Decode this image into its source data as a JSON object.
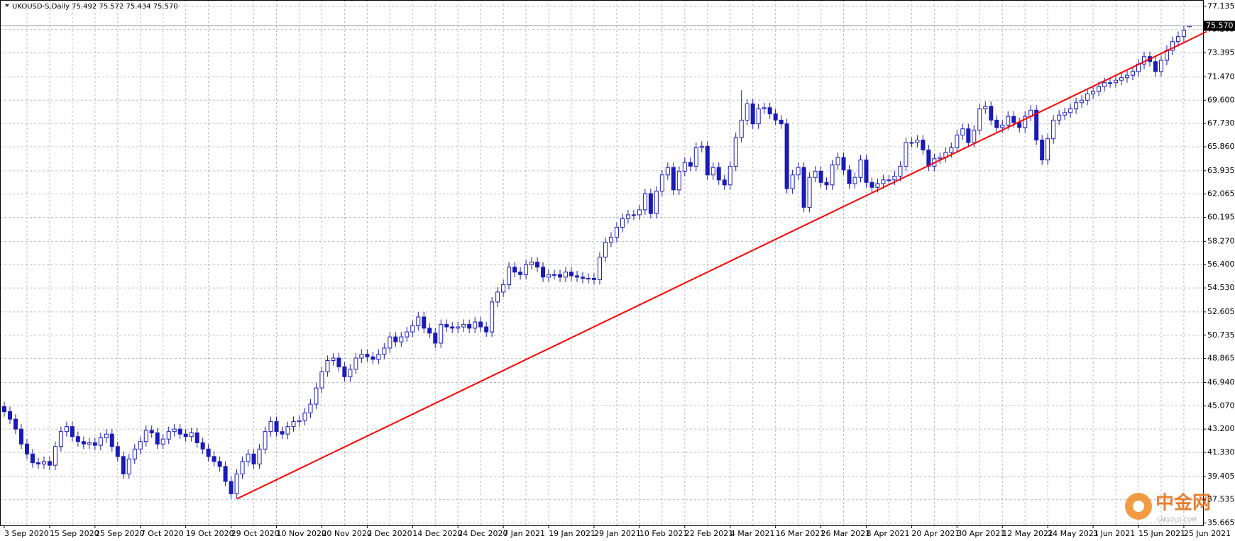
{
  "chart_data": {
    "type": "candlestick",
    "title": "UKOUSD-S,Daily 75.492 75.572 75.434 75.570",
    "last_price_label": "75.570",
    "watermark": "中金网",
    "watermark_sub": "CNGOLD.COM",
    "color": "#1a1ab8",
    "trendline": {
      "color": "#ff0000",
      "start": [
        41,
        37.6
      ],
      "end": [
        212,
        75.1
      ]
    },
    "grid": true,
    "ylim": [
      35.47,
      77.64
    ],
    "yticks": [
      {
        "value": 77.135,
        "label": "77.135"
      },
      {
        "value": 75.265,
        "label": "75.265"
      },
      {
        "value": 73.395,
        "label": "73.395"
      },
      {
        "value": 71.47,
        "label": "71.470"
      },
      {
        "value": 69.6,
        "label": "69.600"
      },
      {
        "value": 67.73,
        "label": "67.730"
      },
      {
        "value": 65.86,
        "label": "65.860"
      },
      {
        "value": 63.935,
        "label": "63.935"
      },
      {
        "value": 62.065,
        "label": "62.065"
      },
      {
        "value": 60.195,
        "label": "60.195"
      },
      {
        "value": 58.27,
        "label": "58.270"
      },
      {
        "value": 56.4,
        "label": "56.400"
      },
      {
        "value": 54.53,
        "label": "54.530"
      },
      {
        "value": 52.605,
        "label": "52.605"
      },
      {
        "value": 50.735,
        "label": "50.735"
      },
      {
        "value": 48.865,
        "label": "48.865"
      },
      {
        "value": 46.94,
        "label": "46.940"
      },
      {
        "value": 45.07,
        "label": "45.070"
      },
      {
        "value": 43.2,
        "label": "43.200"
      },
      {
        "value": 41.33,
        "label": "41.330"
      },
      {
        "value": 39.405,
        "label": "39.405"
      },
      {
        "value": 37.535,
        "label": "37.535"
      },
      {
        "value": 35.665,
        "label": "35.665"
      }
    ],
    "categories": [
      "3 Sep 2020",
      null,
      null,
      null,
      null,
      null,
      null,
      null,
      "15 Sep 2020",
      null,
      null,
      null,
      null,
      null,
      null,
      null,
      "25 Sep 2020",
      null,
      null,
      null,
      null,
      null,
      null,
      null,
      "7 Oct 2020",
      null,
      null,
      null,
      null,
      null,
      null,
      null,
      "19 Oct 2020",
      null,
      null,
      null,
      null,
      null,
      null,
      null,
      "29 Oct 2020",
      null,
      null,
      null,
      null,
      null,
      null,
      null,
      "10 Nov 2020",
      null,
      null,
      null,
      null,
      null,
      null,
      null,
      "20 Nov 2020",
      null,
      null,
      null,
      null,
      null,
      null,
      null,
      "2 Dec 2020",
      null,
      null,
      null,
      null,
      null,
      null,
      null,
      "14 Dec 2020",
      null,
      null,
      null,
      null,
      null,
      null,
      null,
      "24 Dec 2020",
      null,
      null,
      null,
      null,
      null,
      null,
      null,
      "7 Jan 2021",
      null,
      null,
      null,
      null,
      null,
      null,
      null,
      "19 Jan 2021",
      null,
      null,
      null,
      null,
      null,
      null,
      null,
      "29 Jan 2021",
      null,
      null,
      null,
      null,
      null,
      null,
      null,
      "10 Feb 2021",
      null,
      null,
      null,
      null,
      null,
      null,
      null,
      "22 Feb 2021",
      null,
      null,
      null,
      null,
      null,
      null,
      null,
      "4 Mar 2021",
      null,
      null,
      null,
      null,
      null,
      null,
      null,
      "16 Mar 2021",
      null,
      null,
      null,
      null,
      null,
      null,
      null,
      "26 Mar 2021",
      null,
      null,
      null,
      null,
      null,
      null,
      null,
      "8 Apr 2021",
      null,
      null,
      null,
      null,
      null,
      null,
      null,
      "20 Apr 2021",
      null,
      null,
      null,
      null,
      null,
      null,
      null,
      "30 Apr 2021",
      null,
      null,
      null,
      null,
      null,
      null,
      null,
      "12 May 2021",
      null,
      null,
      null,
      null,
      null,
      null,
      null,
      "24 May 2021",
      null,
      null,
      null,
      null,
      null,
      null,
      null,
      "3 Jun 2021",
      null,
      null,
      null,
      null,
      null,
      null,
      null,
      "15 Jun 2021",
      null,
      null,
      null,
      null,
      null,
      null,
      null,
      "25 Jun 2021",
      null
    ],
    "open": [
      45,
      44.6,
      44.0,
      43.2,
      42.0,
      41.2,
      40.5,
      40.4,
      40.6,
      40.3,
      41.8,
      43.0,
      43.4,
      42.6,
      42.2,
      42.0,
      42.1,
      41.9,
      42.5,
      42.8,
      41.8,
      41.0,
      39.6,
      40.8,
      41.6,
      42.2,
      43.1,
      42.9,
      42.0,
      42.4,
      43.0,
      43.2,
      42.8,
      42.6,
      42.9,
      42.1,
      41.6,
      41.0,
      40.6,
      40.2,
      39.0,
      38.0,
      39.6,
      40.6,
      41.2,
      40.4,
      41.6,
      43.0,
      43.8,
      43.0,
      42.8,
      43.4,
      43.8,
      43.9,
      44.5,
      45.2,
      46.5,
      47.8,
      48.7,
      48.9,
      48.2,
      47.4,
      48.0,
      48.9,
      49.2,
      49.0,
      48.8,
      49.2,
      49.7,
      50.6,
      50.2,
      50.6,
      51.0,
      51.5,
      52.2,
      51.3,
      50.9,
      50.1,
      51.6,
      51.4,
      51.3,
      51.4,
      51.6,
      51.3,
      51.8,
      51.4,
      51.0,
      53.4,
      54.2,
      54.8,
      56.2,
      55.8,
      55.6,
      56.4,
      56.6,
      56.2,
      55.4,
      55.6,
      55.6,
      55.4,
      55.8,
      55.5,
      55.4,
      55.3,
      55.3,
      55.2,
      57.0,
      58.2,
      58.6,
      59.4,
      60.1,
      60.4,
      60.4,
      60.8,
      62.1,
      60.5,
      62.3,
      63.6,
      64.2,
      62.4,
      63.9,
      64.6,
      64.3,
      65.8,
      65.9,
      63.6,
      64.2,
      63.2,
      62.8,
      64.3,
      66.6,
      68.0,
      69.3,
      67.7,
      68.9,
      69.0,
      68.5,
      68.0,
      67.7,
      62.5,
      63.6,
      64.2,
      61.0,
      63.4,
      63.9,
      63.0,
      62.8,
      64.4,
      65.0,
      64.0,
      62.9,
      63.4,
      64.8,
      63.0,
      62.6,
      62.9,
      63.2,
      63.2,
      63.5,
      64.3,
      66.2,
      66.2,
      66.4,
      65.6,
      64.3,
      64.9,
      65.0,
      65.4,
      65.8,
      66.8,
      67.3,
      66.2,
      67.2,
      68.9,
      69.1,
      68.0,
      67.4,
      67.6,
      68.3,
      67.8,
      67.4,
      68.3,
      68.8,
      66.4,
      64.8,
      66.5,
      68.0,
      68.4,
      68.6,
      68.9,
      69.4,
      69.6,
      70.1,
      70.3,
      70.7,
      71.0,
      71.0,
      71.2,
      71.4,
      71.6,
      71.9,
      72.5,
      73.1,
      72.7,
      71.9,
      72.8,
      73.6,
      74.3,
      74.7,
      75.492
    ],
    "high": [
      45.4,
      45.0,
      44.4,
      43.6,
      42.4,
      41.6,
      40.9,
      41.0,
      41.0,
      42.2,
      43.4,
      43.8,
      43.8,
      43.0,
      42.6,
      42.5,
      42.5,
      42.9,
      43.2,
      43.2,
      42.2,
      41.4,
      41.2,
      42.0,
      42.6,
      43.5,
      43.5,
      43.3,
      42.8,
      43.4,
      43.6,
      43.6,
      43.2,
      43.3,
      43.3,
      42.5,
      42.0,
      41.4,
      41.0,
      40.6,
      39.4,
      40.0,
      41.0,
      41.6,
      41.6,
      42.0,
      43.4,
      44.2,
      44.2,
      43.4,
      43.8,
      44.2,
      44.3,
      44.9,
      45.6,
      46.9,
      48.2,
      49.1,
      49.3,
      49.3,
      48.6,
      48.4,
      49.3,
      49.6,
      49.6,
      49.4,
      49.6,
      50.1,
      51.0,
      51.0,
      51.0,
      51.4,
      51.9,
      52.6,
      52.6,
      51.7,
      51.3,
      52.0,
      52.0,
      51.8,
      51.8,
      52.0,
      52.0,
      52.2,
      52.2,
      51.8,
      53.8,
      54.6,
      55.2,
      56.6,
      56.6,
      56.2,
      56.8,
      57.0,
      57.0,
      56.6,
      56.0,
      56.0,
      56.0,
      56.2,
      56.2,
      55.9,
      55.8,
      55.7,
      55.7,
      57.4,
      58.6,
      59.0,
      59.8,
      60.5,
      60.8,
      60.8,
      61.2,
      62.5,
      62.5,
      62.7,
      64.0,
      64.6,
      64.6,
      64.3,
      65.0,
      65.0,
      66.2,
      66.3,
      66.3,
      64.6,
      64.6,
      63.6,
      64.7,
      67.0,
      70.4,
      69.7,
      69.7,
      69.3,
      69.4,
      69.4,
      68.9,
      68.4,
      68.1,
      64.0,
      64.6,
      64.6,
      63.8,
      64.3,
      64.3,
      63.4,
      64.8,
      65.4,
      65.4,
      64.4,
      63.8,
      65.2,
      65.2,
      63.4,
      63.3,
      63.6,
      63.6,
      63.9,
      64.7,
      66.6,
      66.6,
      66.8,
      66.8,
      66.0,
      65.3,
      65.4,
      65.8,
      66.2,
      67.2,
      67.7,
      67.7,
      67.6,
      69.3,
      69.5,
      69.5,
      68.4,
      68.0,
      68.7,
      68.7,
      68.2,
      68.7,
      69.2,
      69.2,
      66.8,
      66.9,
      68.4,
      68.8,
      69.0,
      69.3,
      69.8,
      70.0,
      70.5,
      70.7,
      71.1,
      71.4,
      71.4,
      71.6,
      71.8,
      72.0,
      72.3,
      72.9,
      73.5,
      73.5,
      73.1,
      73.2,
      74.0,
      74.7,
      75.1,
      75.6,
      75.572
    ],
    "low": [
      44.2,
      43.6,
      42.8,
      41.6,
      40.8,
      40.1,
      40.0,
      40.0,
      39.9,
      39.9,
      41.4,
      42.6,
      42.2,
      41.8,
      41.6,
      41.6,
      41.5,
      41.5,
      42.1,
      41.4,
      40.6,
      39.2,
      39.2,
      40.4,
      41.2,
      41.8,
      42.5,
      41.6,
      41.6,
      42.0,
      42.6,
      42.4,
      42.2,
      42.2,
      41.7,
      41.2,
      40.6,
      40.2,
      39.8,
      38.6,
      37.6,
      37.6,
      39.2,
      40.2,
      40.0,
      40.0,
      41.2,
      42.6,
      42.6,
      42.4,
      42.4,
      43.0,
      43.4,
      43.5,
      44.1,
      44.8,
      46.1,
      47.4,
      48.3,
      47.8,
      47.0,
      47.0,
      47.6,
      48.5,
      48.6,
      48.4,
      48.4,
      48.8,
      49.3,
      49.8,
      49.8,
      50.2,
      50.6,
      51.1,
      50.9,
      50.5,
      49.7,
      49.7,
      51.0,
      50.9,
      50.9,
      51.0,
      50.9,
      50.9,
      51.0,
      50.6,
      50.6,
      53.0,
      53.8,
      54.4,
      55.4,
      55.2,
      55.2,
      56.0,
      55.8,
      55.0,
      55.0,
      55.2,
      55.0,
      55.0,
      55.1,
      55.0,
      54.9,
      54.9,
      54.8,
      54.8,
      56.6,
      57.8,
      58.2,
      59.0,
      59.7,
      60.0,
      60.0,
      60.4,
      60.1,
      60.1,
      61.9,
      63.2,
      62.0,
      62.0,
      63.5,
      63.9,
      63.9,
      65.4,
      63.2,
      63.2,
      62.8,
      62.4,
      62.4,
      63.9,
      66.2,
      67.6,
      67.3,
      67.3,
      68.5,
      68.1,
      67.6,
      67.3,
      62.1,
      62.1,
      63.2,
      60.6,
      60.6,
      63.0,
      62.6,
      62.4,
      62.4,
      64.0,
      63.6,
      62.5,
      62.5,
      63.0,
      62.6,
      62.2,
      62.2,
      62.5,
      62.8,
      62.8,
      63.1,
      63.9,
      65.8,
      65.8,
      65.2,
      63.9,
      63.9,
      64.5,
      64.6,
      65.0,
      65.4,
      66.4,
      65.8,
      65.8,
      66.8,
      68.5,
      67.6,
      67.0,
      67.0,
      67.2,
      67.4,
      67.0,
      67.0,
      67.9,
      66.0,
      64.4,
      64.4,
      66.1,
      67.6,
      68.0,
      68.2,
      68.5,
      69.0,
      69.2,
      69.7,
      69.9,
      70.3,
      70.6,
      70.6,
      70.8,
      71.0,
      71.2,
      71.5,
      72.1,
      72.3,
      71.5,
      71.5,
      72.4,
      73.2,
      73.9,
      74.3,
      75.434
    ],
    "close": [
      44.6,
      44.0,
      43.2,
      42.0,
      41.2,
      40.5,
      40.4,
      40.6,
      40.3,
      41.8,
      43.0,
      43.4,
      42.6,
      42.2,
      42.0,
      42.1,
      41.9,
      42.5,
      42.8,
      41.8,
      41.0,
      39.6,
      40.8,
      41.6,
      42.2,
      43.1,
      42.9,
      42.0,
      42.4,
      43.0,
      43.2,
      42.8,
      42.6,
      42.9,
      42.1,
      41.6,
      41.0,
      40.6,
      40.2,
      39.0,
      38.0,
      39.6,
      40.6,
      41.2,
      40.4,
      41.6,
      43.0,
      43.8,
      43.0,
      42.8,
      43.4,
      43.8,
      43.9,
      44.5,
      45.2,
      46.5,
      47.8,
      48.7,
      48.9,
      48.2,
      47.4,
      48.0,
      48.9,
      49.2,
      49.0,
      48.8,
      49.2,
      49.7,
      50.6,
      50.2,
      50.6,
      51.0,
      51.5,
      52.2,
      51.3,
      50.9,
      50.1,
      51.6,
      51.4,
      51.3,
      51.4,
      51.6,
      51.3,
      51.8,
      51.4,
      51.0,
      53.4,
      54.2,
      54.8,
      56.2,
      55.8,
      55.6,
      56.4,
      56.6,
      56.2,
      55.4,
      55.6,
      55.6,
      55.4,
      55.8,
      55.5,
      55.4,
      55.3,
      55.3,
      55.2,
      57.0,
      58.2,
      58.6,
      59.4,
      60.1,
      60.4,
      60.4,
      60.8,
      62.1,
      60.5,
      62.3,
      63.6,
      64.2,
      62.4,
      63.9,
      64.6,
      64.3,
      65.8,
      65.9,
      63.6,
      64.2,
      63.2,
      62.8,
      64.3,
      66.6,
      68.0,
      69.3,
      67.7,
      68.9,
      69.0,
      68.5,
      68.0,
      67.7,
      62.5,
      63.6,
      64.2,
      61.0,
      63.4,
      63.9,
      63.0,
      62.8,
      64.4,
      65.0,
      64.0,
      62.9,
      63.4,
      64.8,
      63.0,
      62.6,
      62.9,
      63.2,
      63.2,
      63.5,
      64.3,
      66.2,
      66.2,
      66.4,
      65.6,
      64.3,
      64.9,
      65.0,
      65.4,
      65.8,
      66.8,
      67.3,
      66.2,
      67.2,
      68.9,
      69.1,
      68.0,
      67.4,
      67.6,
      68.3,
      67.8,
      67.4,
      68.3,
      68.8,
      66.4,
      64.8,
      66.5,
      68.0,
      68.4,
      68.6,
      68.9,
      69.4,
      69.6,
      70.1,
      70.3,
      70.7,
      71.0,
      71.0,
      71.2,
      71.4,
      71.6,
      71.9,
      72.5,
      73.1,
      72.7,
      71.9,
      72.8,
      73.6,
      74.3,
      74.7,
      75.2,
      75.57
    ]
  }
}
